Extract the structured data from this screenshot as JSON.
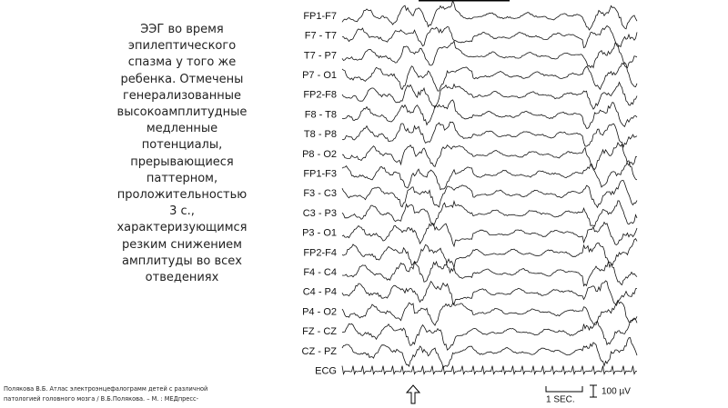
{
  "description": {
    "lines": [
      "ЭЭГ во время",
      "эпилептического",
      "спазма у того же",
      "ребенка. Отмечены",
      "генерализованные",
      "высокоамплитудные",
      "медленные",
      "потенциалы,",
      "прерывающиеся",
      "паттерном,",
      "проложительностью",
      "3 с.,",
      "характеризующимся",
      "резким снижением",
      "амплитуды во всех",
      "отведениях"
    ]
  },
  "eeg": {
    "channels": [
      "FP1-F7",
      "F7 - T7",
      "T7 - P7",
      "P7 - O1",
      "FP2-F8",
      "F8 - T8",
      "T8 - P8",
      "P8 - O2",
      "FP1-F3",
      "F3 - C3",
      "C3 - P3",
      "P3 - O1",
      "FP2-F4",
      "F4 - C4",
      "C4 - P4",
      "P4 - O2",
      "FZ - CZ",
      "CZ - PZ",
      "ECG"
    ],
    "time_scale": "1 SEC.",
    "amplitude_scale": "100 µV"
  },
  "citation": {
    "lines": [
      "Полякова В.Б. Атлас электроэнцефалограмм детей с различной",
      "патологией головного мозга / В.Б.Полякова. – М. : МЕДпресс-"
    ]
  }
}
